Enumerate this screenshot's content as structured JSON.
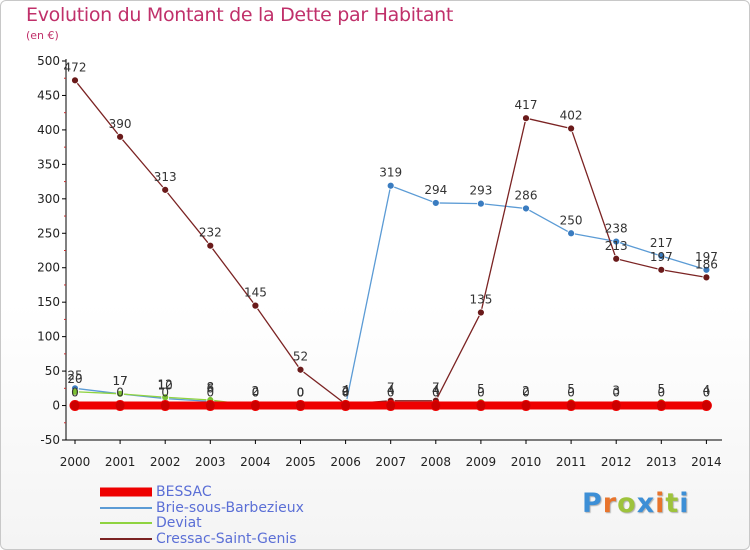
{
  "title": "Evolution du Montant de la Dette par Habitant",
  "unit": "(en €)",
  "logo": {
    "text": "Proxiti",
    "letter_colors": [
      "#3d8fd6",
      "#e8742c",
      "#9ec33c",
      "#3d8fd6",
      "#e8742c",
      "#9ec33c",
      "#3d8fd6"
    ]
  },
  "chart_data": {
    "type": "line",
    "title": "Evolution du Montant de la Dette par Habitant",
    "subtitle": "(en €)",
    "xlabel": "",
    "ylabel": "",
    "x": [
      "2000",
      "2001",
      "2002",
      "2003",
      "2004",
      "2005",
      "2006",
      "2007",
      "2008",
      "2009",
      "2010",
      "2011",
      "2012",
      "2013",
      "2014"
    ],
    "ylim": [
      -50,
      500
    ],
    "yticks": [
      "-50",
      "0",
      "50",
      "100",
      "150",
      "200",
      "250",
      "300",
      "350",
      "400",
      "450",
      "500"
    ],
    "grid": false,
    "legend_position": "bottom-left",
    "series": [
      {
        "name": "BESSAC",
        "color": "#ee0000",
        "style": "thick",
        "values": [
          0,
          0,
          0,
          0,
          0,
          0,
          0,
          0,
          0,
          0,
          0,
          0,
          0,
          0,
          0
        ],
        "labels": [
          "0",
          "0",
          "0",
          "0",
          "0",
          "0",
          "0",
          "0",
          "0",
          "0",
          "0",
          "0",
          "0",
          "0",
          "0"
        ]
      },
      {
        "name": "Brie-sous-Barbezieux",
        "color": "#5b9bd5",
        "point_color": "#3a7cc0",
        "style": "line",
        "values": [
          25,
          17,
          10,
          6,
          2,
          0,
          0,
          319,
          294,
          293,
          286,
          250,
          238,
          217,
          197
        ],
        "labels": [
          "25",
          "17",
          "10",
          "6",
          "2",
          "0",
          "0",
          "319",
          "294",
          "293",
          "286",
          "250",
          "238",
          "217",
          "197"
        ]
      },
      {
        "name": "Deviat",
        "color": "#8fd33f",
        "point_color": "#7cc232",
        "style": "line",
        "values": [
          20,
          17,
          12,
          8,
          0,
          0,
          4,
          4,
          4,
          5,
          2,
          5,
          3,
          5,
          4
        ],
        "labels": [
          "20",
          "17",
          "12",
          "8",
          "0",
          "0",
          "4",
          "4",
          "4",
          "5",
          "2",
          "5",
          "3",
          "5",
          "4"
        ]
      },
      {
        "name": "Cressac-Saint-Genis",
        "color": "#7b2323",
        "point_color": "#6a1a1a",
        "style": "line",
        "values": [
          472,
          390,
          313,
          232,
          145,
          52,
          2,
          7,
          7,
          135,
          417,
          402,
          213,
          197,
          186
        ],
        "labels": [
          "472",
          "390",
          "313",
          "232",
          "145",
          "52",
          "2",
          "7",
          "7",
          "135",
          "417",
          "402",
          "213",
          "197",
          "186"
        ]
      }
    ]
  }
}
